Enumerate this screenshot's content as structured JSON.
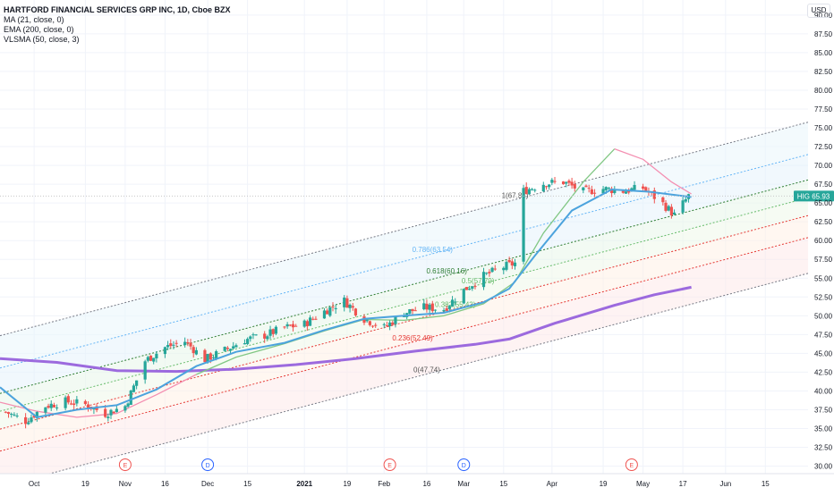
{
  "header": {
    "title": "HARTFORD FINANCIAL SERVICES GRP INC, 1D, Cboe BZX",
    "indicators": [
      "MA (21, close, 0)",
      "EMA (200, close, 0)",
      "VLSMA (50, close, 3)"
    ],
    "currency": "USD"
  },
  "price_label": {
    "symbol": "HIG",
    "value": "65.93"
  },
  "colors": {
    "up": "#26a69a",
    "down": "#ef5350",
    "ma21": "#f48fb1",
    "vlsma": "#4ca3dd",
    "ema200": "#9c6ade",
    "ma_green": "#81c784",
    "fib_mid": "#2e7d32",
    "fib_light": "#66bb6a",
    "fib_786": "#64b5f6",
    "fib_236": "#e53935",
    "fib_gray": "#787b86",
    "grid": "#f0f3fa",
    "axis_text": "#131722",
    "badge": "#2962ff"
  },
  "events": [
    {
      "label": "E",
      "date": "2020-11-02",
      "kind": "earnings"
    },
    {
      "label": "D",
      "date": "2020-12-01",
      "kind": "dividend"
    },
    {
      "label": "E",
      "date": "2021-02-03",
      "kind": "earnings"
    },
    {
      "label": "D",
      "date": "2021-03-01",
      "kind": "dividend"
    },
    {
      "label": "E",
      "date": "2021-04-29",
      "kind": "earnings"
    }
  ],
  "chart_data": {
    "type": "candlestick",
    "title": "HARTFORD FINANCIAL SERVICES GRP INC, 1D, Cboe BZX",
    "x_ticks": [
      {
        "label": "Oct",
        "date": "2020-10-01"
      },
      {
        "label": "19",
        "date": "2020-10-19"
      },
      {
        "label": "Nov",
        "date": "2020-11-02"
      },
      {
        "label": "16",
        "date": "2020-11-16"
      },
      {
        "label": "Dec",
        "date": "2020-12-01"
      },
      {
        "label": "15",
        "date": "2020-12-15"
      },
      {
        "label": "2021",
        "date": "2021-01-04"
      },
      {
        "label": "19",
        "date": "2021-01-19"
      },
      {
        "label": "Feb",
        "date": "2021-02-01"
      },
      {
        "label": "16",
        "date": "2021-02-16"
      },
      {
        "label": "Mar",
        "date": "2021-03-01"
      },
      {
        "label": "15",
        "date": "2021-03-15"
      },
      {
        "label": "Apr",
        "date": "2021-04-01"
      },
      {
        "label": "19",
        "date": "2021-04-19"
      },
      {
        "label": "May",
        "date": "2021-05-03"
      },
      {
        "label": "17",
        "date": "2021-05-17"
      },
      {
        "label": "Jun",
        "date": "2021-06-01"
      },
      {
        "label": "15",
        "date": "2021-06-15"
      }
    ],
    "y_ticks": [
      "90.00",
      "87.50",
      "85.00",
      "82.50",
      "80.00",
      "77.50",
      "75.00",
      "72.50",
      "70.00",
      "67.50",
      "65.00",
      "62.50",
      "60.00",
      "57.50",
      "55.00",
      "52.50",
      "50.00",
      "47.50",
      "45.00",
      "42.50",
      "40.00",
      "37.50",
      "35.00",
      "32.50",
      "30.00"
    ],
    "ylim": [
      29.0,
      92.0
    ],
    "xlim": [
      "2020-09-19",
      "2021-06-30"
    ],
    "close_path": [
      [
        "2020-09-21",
        37.2
      ],
      [
        "2020-09-28",
        36.0
      ],
      [
        "2020-10-05",
        38.0
      ],
      [
        "2020-10-12",
        38.6
      ],
      [
        "2020-10-19",
        38.2
      ],
      [
        "2020-10-26",
        37.0
      ],
      [
        "2020-11-02",
        38.0
      ],
      [
        "2020-11-09",
        44.0
      ],
      [
        "2020-11-16",
        45.8
      ],
      [
        "2020-11-23",
        46.6
      ],
      [
        "2020-11-30",
        44.2
      ],
      [
        "2020-12-07",
        45.4
      ],
      [
        "2020-12-14",
        46.8
      ],
      [
        "2020-12-21",
        47.4
      ],
      [
        "2020-12-28",
        48.4
      ],
      [
        "2021-01-04",
        48.9
      ],
      [
        "2021-01-11",
        50.6
      ],
      [
        "2021-01-18",
        52.0
      ],
      [
        "2021-01-25",
        49.6
      ],
      [
        "2021-02-01",
        48.4
      ],
      [
        "2021-02-08",
        50.4
      ],
      [
        "2021-02-15",
        51.1
      ],
      [
        "2021-02-22",
        50.9
      ],
      [
        "2021-03-01",
        53.4
      ],
      [
        "2021-03-08",
        55.3
      ],
      [
        "2021-03-15",
        56.5
      ],
      [
        "2021-03-19",
        57.0
      ],
      [
        "2021-03-22",
        66.6
      ],
      [
        "2021-03-29",
        67.6
      ],
      [
        "2021-04-05",
        67.8
      ],
      [
        "2021-04-12",
        66.5
      ],
      [
        "2021-04-19",
        66.9
      ],
      [
        "2021-04-26",
        66.6
      ],
      [
        "2021-05-03",
        67.0
      ],
      [
        "2021-05-10",
        64.9
      ],
      [
        "2021-05-14",
        63.4
      ],
      [
        "2021-05-19",
        65.93
      ]
    ],
    "series": [
      {
        "name": "MA (21, close, 0)",
        "points": [
          [
            "2020-09-19",
            38.5
          ],
          [
            "2020-10-02",
            37.3
          ],
          [
            "2020-10-16",
            36.5
          ],
          [
            "2020-10-30",
            37.0
          ],
          [
            "2020-11-13",
            39.5
          ],
          [
            "2020-11-27",
            42.2
          ],
          [
            "2020-12-11",
            44.5
          ],
          [
            "2020-12-28",
            46.3
          ],
          [
            "2021-01-11",
            48.0
          ],
          [
            "2021-01-25",
            49.5
          ],
          [
            "2021-02-08",
            49.4
          ],
          [
            "2021-02-22",
            50.0
          ],
          [
            "2021-03-08",
            51.6
          ],
          [
            "2021-03-19",
            54.5
          ],
          [
            "2021-03-29",
            61.0
          ],
          [
            "2021-04-12",
            67.8
          ],
          [
            "2021-04-23",
            72.2
          ],
          [
            "2021-05-03",
            70.8
          ],
          [
            "2021-05-13",
            67.8
          ],
          [
            "2021-05-20",
            66.2
          ]
        ]
      },
      {
        "name": "EMA (200, close, 0)",
        "points": [
          [
            "2020-09-19",
            44.3
          ],
          [
            "2020-10-09",
            43.8
          ],
          [
            "2020-10-30",
            42.7
          ],
          [
            "2020-11-20",
            42.6
          ],
          [
            "2020-12-11",
            42.9
          ],
          [
            "2021-01-01",
            43.5
          ],
          [
            "2021-01-22",
            44.3
          ],
          [
            "2021-02-12",
            45.3
          ],
          [
            "2021-03-05",
            46.2
          ],
          [
            "2021-03-17",
            46.9
          ],
          [
            "2021-04-02",
            49.0
          ],
          [
            "2021-04-23",
            51.4
          ],
          [
            "2021-05-07",
            52.8
          ],
          [
            "2021-05-20",
            53.8
          ]
        ]
      },
      {
        "name": "VLSMA (50, close, 3)",
        "points": [
          [
            "2020-09-19",
            40.5
          ],
          [
            "2020-10-02",
            36.5
          ],
          [
            "2020-10-16",
            37.5
          ],
          [
            "2020-10-30",
            38.1
          ],
          [
            "2020-11-13",
            40.2
          ],
          [
            "2020-11-27",
            43.3
          ],
          [
            "2020-12-11",
            45.2
          ],
          [
            "2020-12-28",
            46.4
          ],
          [
            "2021-01-11",
            48.1
          ],
          [
            "2021-01-25",
            49.6
          ],
          [
            "2021-02-08",
            50.0
          ],
          [
            "2021-02-22",
            50.4
          ],
          [
            "2021-03-08",
            51.8
          ],
          [
            "2021-03-17",
            53.6
          ],
          [
            "2021-03-26",
            58.0
          ],
          [
            "2021-04-08",
            64.0
          ],
          [
            "2021-04-22",
            66.8
          ],
          [
            "2021-05-05",
            66.5
          ],
          [
            "2021-05-20",
            65.8
          ]
        ]
      }
    ],
    "fib_channel": {
      "start": {
        "date": "2020-09-19",
        "base": 27.25
      },
      "slope_per_day": 0.1,
      "levels": [
        {
          "label": "0(47.74)",
          "ratio": 0,
          "offset": 0.0
        },
        {
          "label": "0.236(52.49)",
          "ratio": 0.236,
          "offset": 4.75
        },
        {
          "label": "0.382(55.42)",
          "ratio": 0.382,
          "offset": 7.68
        },
        {
          "label": "0.5(57.79)",
          "ratio": 0.5,
          "offset": 10.05
        },
        {
          "label": "0.618(60.16)",
          "ratio": 0.618,
          "offset": 12.42
        },
        {
          "label": "0.786(63.54)",
          "ratio": 0.786,
          "offset": 15.8
        },
        {
          "label": "1(67.84)",
          "ratio": 1,
          "offset": 20.1
        }
      ]
    },
    "last_price": 65.93
  }
}
